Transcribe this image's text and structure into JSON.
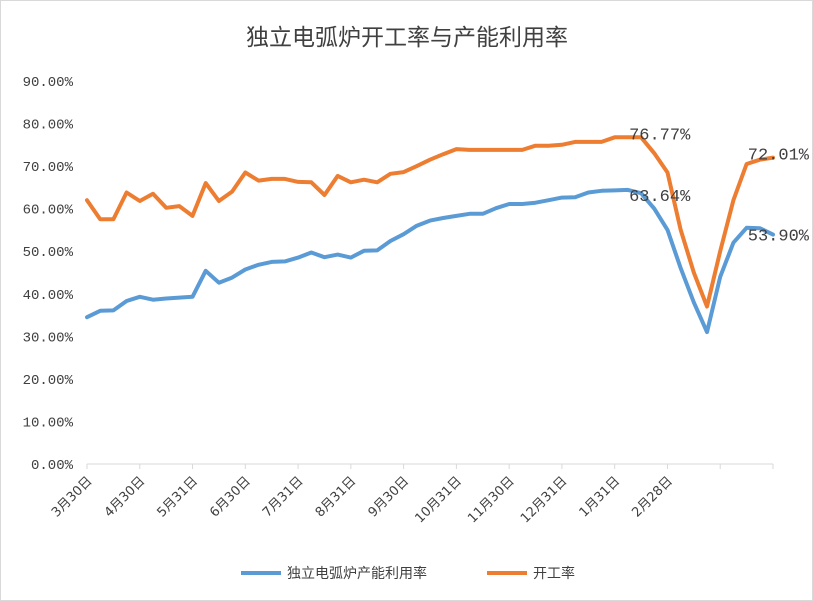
{
  "chart_data": {
    "type": "line",
    "title": "独立电弧炉开工率与产能利用率",
    "xlabel": "",
    "ylabel": "",
    "ylim": [
      0,
      90
    ],
    "y_ticks": [
      "0.00%",
      "10.00%",
      "20.00%",
      "30.00%",
      "40.00%",
      "50.00%",
      "60.00%",
      "70.00%",
      "80.00%",
      "90.00%"
    ],
    "x_tick_labels": [
      "3月30日",
      "4月30日",
      "5月31日",
      "6月30日",
      "7月31日",
      "8月31日",
      "9月30日",
      "10月31日",
      "11月30日",
      "12月31日",
      "1月31日",
      "2月28日"
    ],
    "x_tick_index": [
      0,
      4,
      8,
      12,
      16,
      20,
      24,
      28,
      32,
      36,
      40,
      44
    ],
    "grid": false,
    "legend": "bottom",
    "series": [
      {
        "name": "独立电弧炉产能利用率",
        "color": "#5b9bd5",
        "values": [
          34.5,
          36.0,
          36.1,
          38.3,
          39.3,
          38.6,
          38.9,
          39.1,
          39.3,
          45.4,
          42.6,
          43.8,
          45.7,
          46.8,
          47.5,
          47.6,
          48.5,
          49.7,
          48.6,
          49.2,
          48.5,
          50.1,
          50.2,
          52.4,
          54.0,
          56.0,
          57.2,
          57.8,
          58.3,
          58.8,
          58.8,
          60.1,
          61.1,
          61.1,
          61.4,
          62.0,
          62.6,
          62.7,
          63.8,
          64.2,
          64.3,
          64.4,
          63.64,
          60.0,
          55.0,
          46.0,
          38.0,
          31.0,
          44.0,
          52.0,
          55.5,
          55.4,
          53.9
        ],
        "end_label": "53.90%",
        "annotations": [
          {
            "index": 42,
            "label": "63.64%"
          }
        ]
      },
      {
        "name": "开工率",
        "color": "#ed7d31",
        "values": [
          62.0,
          57.5,
          57.5,
          63.8,
          61.8,
          63.5,
          60.2,
          60.6,
          58.3,
          66.0,
          61.8,
          64.0,
          68.5,
          66.6,
          67.0,
          67.0,
          66.3,
          66.2,
          63.2,
          67.7,
          66.2,
          66.8,
          66.2,
          68.2,
          68.6,
          70.0,
          71.5,
          72.8,
          74.0,
          73.8,
          73.8,
          73.8,
          73.8,
          73.8,
          74.8,
          74.8,
          75.0,
          75.7,
          75.7,
          75.7,
          76.77,
          76.77,
          76.77,
          73.0,
          68.5,
          55.0,
          45.0,
          37.0,
          50.0,
          62.0,
          70.5,
          71.5,
          72.01
        ],
        "end_label": "72.01%",
        "annotations": [
          {
            "index": 42,
            "label": "76.77%"
          }
        ]
      }
    ]
  }
}
